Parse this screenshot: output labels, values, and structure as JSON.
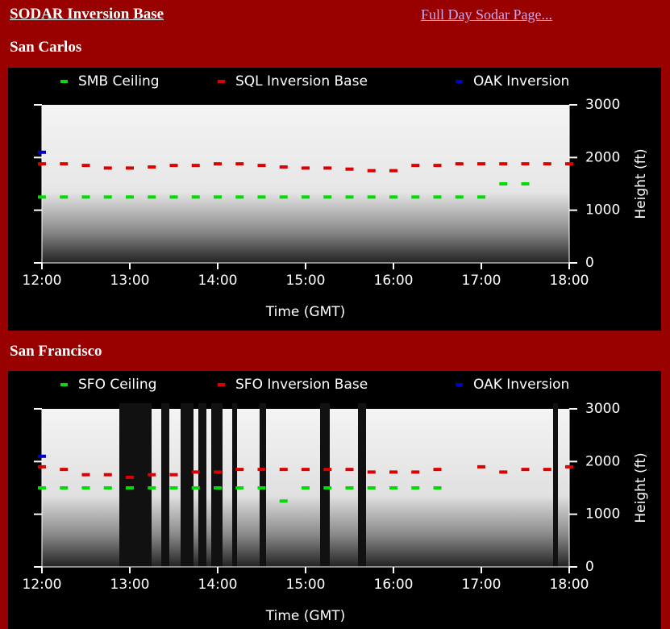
{
  "header": {
    "title": "SODAR Inversion Base",
    "link": "Full Day Sodar Page..."
  },
  "chart_data": [
    {
      "type": "scatter",
      "title": "San Carlos",
      "xlabel": "Time (GMT)",
      "ylabel": "Height (ft)",
      "xlim": [
        12,
        18
      ],
      "xticks": [
        {
          "value": 12,
          "label": "12:00"
        },
        {
          "value": 13,
          "label": "13:00"
        },
        {
          "value": 14,
          "label": "14:00"
        },
        {
          "value": 15,
          "label": "15:00"
        },
        {
          "value": 16,
          "label": "16:00"
        },
        {
          "value": 17,
          "label": "17:00"
        },
        {
          "value": 18,
          "label": "18:00"
        }
      ],
      "ylim": [
        0,
        3000
      ],
      "yticks": [
        0,
        1000,
        2000,
        3000
      ],
      "series": [
        {
          "name": "SMB Ceiling",
          "color": "#00dd00",
          "x": [
            12,
            12.25,
            12.5,
            12.75,
            13,
            13.25,
            13.5,
            13.75,
            14,
            14.25,
            14.5,
            14.75,
            15,
            15.25,
            15.5,
            15.75,
            16,
            16.25,
            16.5,
            16.75,
            17,
            17.25,
            17.5
          ],
          "values": [
            1250,
            1250,
            1250,
            1250,
            1250,
            1250,
            1250,
            1250,
            1250,
            1250,
            1250,
            1250,
            1250,
            1250,
            1250,
            1250,
            1250,
            1250,
            1250,
            1250,
            1250,
            1500,
            1500
          ]
        },
        {
          "name": "SQL Inversion Base",
          "color": "#dd0000",
          "x": [
            12,
            12.25,
            12.5,
            12.75,
            13,
            13.25,
            13.5,
            13.75,
            14,
            14.25,
            14.5,
            14.75,
            15,
            15.25,
            15.5,
            15.75,
            16,
            16.25,
            16.5,
            16.75,
            17,
            17.25,
            17.5,
            17.75,
            18
          ],
          "values": [
            1880,
            1880,
            1850,
            1800,
            1800,
            1820,
            1850,
            1850,
            1880,
            1880,
            1850,
            1820,
            1800,
            1800,
            1780,
            1750,
            1750,
            1850,
            1850,
            1880,
            1880,
            1880,
            1880,
            1880,
            1880
          ]
        },
        {
          "name": "OAK Inversion",
          "color": "#0000cc",
          "x": [
            12
          ],
          "values": [
            2100
          ]
        }
      ]
    },
    {
      "type": "scatter",
      "title": "San Francisco",
      "xlabel": "Time (GMT)",
      "ylabel": "Height (ft)",
      "xlim": [
        12,
        18
      ],
      "xticks": [
        {
          "value": 12,
          "label": "12:00"
        },
        {
          "value": 13,
          "label": "13:00"
        },
        {
          "value": 14,
          "label": "14:00"
        },
        {
          "value": 15,
          "label": "15:00"
        },
        {
          "value": 16,
          "label": "16:00"
        },
        {
          "value": 17,
          "label": "17:00"
        },
        {
          "value": 18,
          "label": "18:00"
        }
      ],
      "ylim": [
        0,
        3000
      ],
      "yticks": [
        0,
        1000,
        2000,
        3000
      ],
      "series": [
        {
          "name": "SFO Ceiling",
          "color": "#00dd00",
          "x": [
            12,
            12.25,
            12.5,
            12.75,
            13,
            13.25,
            13.5,
            13.75,
            14,
            14.25,
            14.5,
            14.75,
            15,
            15.25,
            15.5,
            15.75,
            16,
            16.25,
            16.5
          ],
          "values": [
            1500,
            1500,
            1500,
            1500,
            1500,
            1500,
            1500,
            1500,
            1500,
            1500,
            1500,
            1250,
            1500,
            1500,
            1500,
            1500,
            1500,
            1500,
            1500
          ]
        },
        {
          "name": "SFO Inversion Base",
          "color": "#dd0000",
          "x": [
            12,
            12.25,
            12.5,
            12.75,
            13,
            13.25,
            13.5,
            13.75,
            14,
            14.25,
            14.5,
            14.75,
            15,
            15.25,
            15.5,
            15.75,
            16,
            16.25,
            16.5,
            17,
            17.25,
            17.5,
            17.75,
            18
          ],
          "values": [
            1900,
            1850,
            1750,
            1750,
            1700,
            1750,
            1750,
            1800,
            1800,
            1850,
            1850,
            1850,
            1850,
            1850,
            1850,
            1800,
            1800,
            1800,
            1850,
            1900,
            1800,
            1850,
            1850,
            1900
          ]
        },
        {
          "name": "OAK Inversion",
          "color": "#0000cc",
          "x": [
            12
          ],
          "values": [
            2100
          ]
        }
      ]
    }
  ]
}
